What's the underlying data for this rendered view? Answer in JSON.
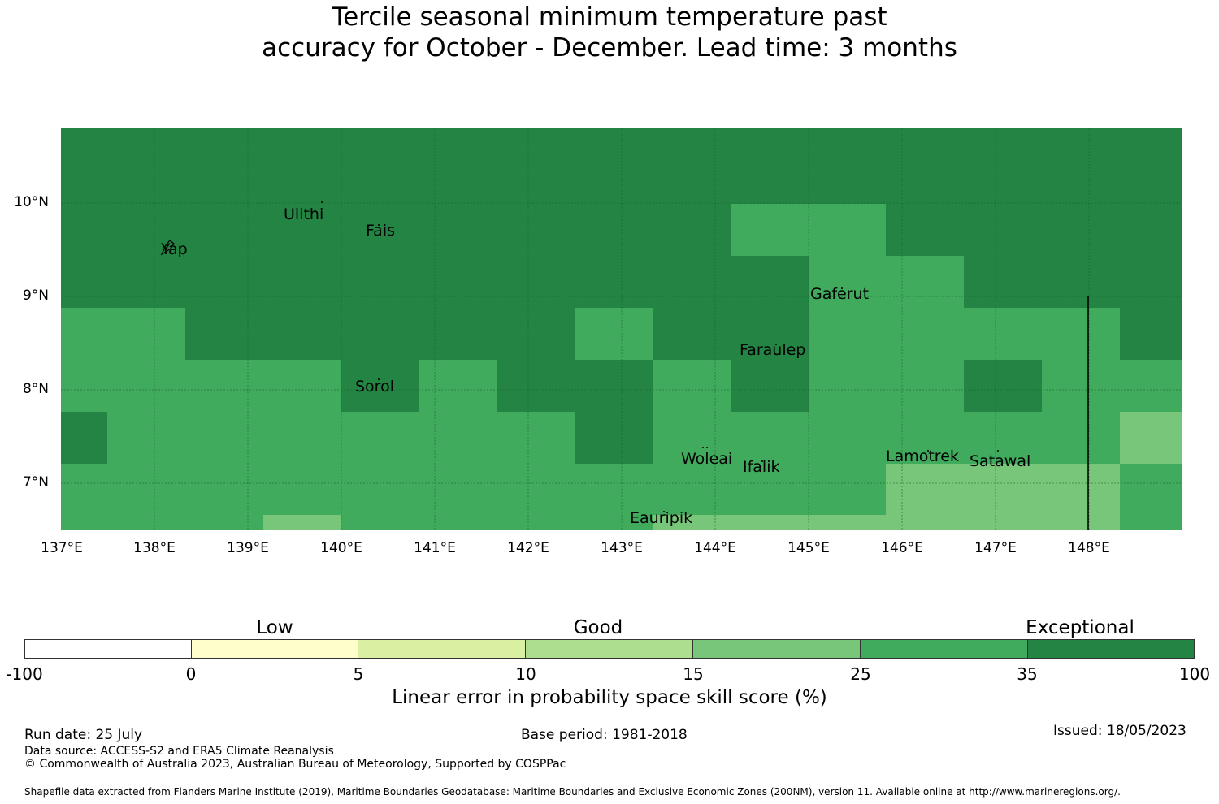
{
  "title": {
    "line1": "Tercile seasonal minimum temperature past",
    "line2": "accuracy for October - December. Lead time: 3 months"
  },
  "map": {
    "lat_labels": [
      "10°N",
      "9°N",
      "8°N",
      "7°N"
    ],
    "lon_labels": [
      "137°E",
      "138°E",
      "139°E",
      "140°E",
      "141°E",
      "142°E",
      "143°E",
      "144°E",
      "145°E",
      "146°E",
      "147°E",
      "148°E"
    ],
    "places": [
      {
        "name": "Ulithi"
      },
      {
        "name": "Fais"
      },
      {
        "name": "Yap"
      },
      {
        "name": "Gaferut"
      },
      {
        "name": "Faraulep"
      },
      {
        "name": "Sorol"
      },
      {
        "name": "Woleai"
      },
      {
        "name": "Ifalik"
      },
      {
        "name": "Lamotrek"
      },
      {
        "name": "Satawal"
      },
      {
        "name": "Eauripik"
      }
    ],
    "colors": {
      "exceptional_dark": "#238443",
      "good_25_35": "#41ab5d",
      "15_25": "#78c679",
      "10_15": "#addd8e",
      "5_10": "#d9f0a3",
      "0_5": "#ffffcc",
      "neg": "#ffffff"
    }
  },
  "legend": {
    "categories": [
      "Low",
      "Good",
      "Exceptional"
    ],
    "ticks": [
      "-100",
      "0",
      "5",
      "10",
      "15",
      "25",
      "35",
      "100"
    ],
    "colors": [
      "#ffffff",
      "#ffffcc",
      "#d9f0a3",
      "#addd8e",
      "#78c679",
      "#41ab5d",
      "#238443"
    ],
    "label": "Linear error in probability space skill score (%)"
  },
  "footer": {
    "run_date": "Run date: 25 July",
    "base_period": "Base period: 1981-2018",
    "issued": "Issued: 18/05/2023",
    "data_source": "Data source: ACCESS-S2 and ERA5 Climate Reanalysis",
    "copyright": "© Commonwealth of Australia 2023, Australian Bureau of Meteorology, Supported by COSPPac",
    "shapefile": "Shapefile data extracted from Flanders Marine Institute (2019), Maritime Boundaries Geodatabase: Maritime Boundaries and Exclusive Economic Zones (200NM), version 11. Available online at http://www.marineregions.org/."
  }
}
